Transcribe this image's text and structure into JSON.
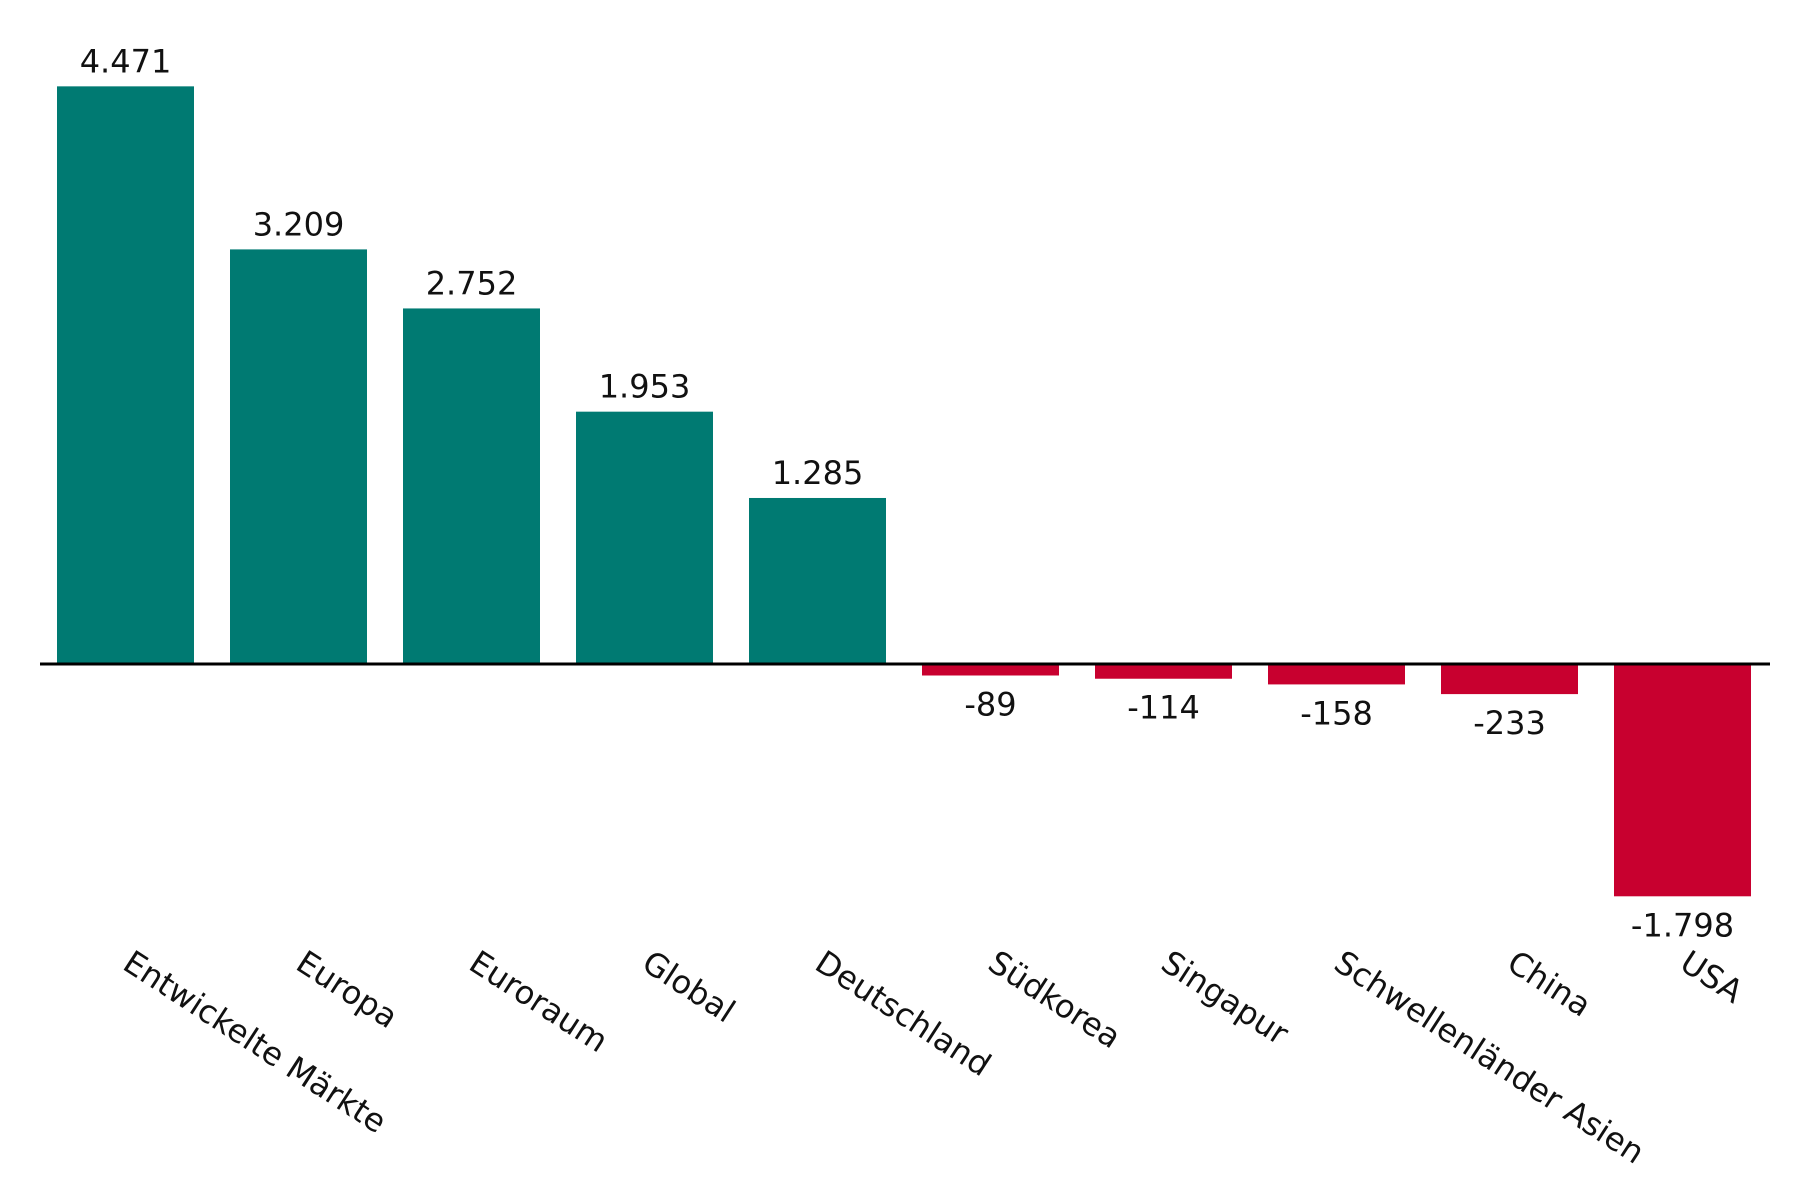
{
  "chart_data": {
    "type": "bar",
    "title": "",
    "xlabel": "",
    "ylabel": "",
    "categories": [
      "Entwickelte Märkte",
      "Europa",
      "Euroraum",
      "Global",
      "Deutschland",
      "Südkorea",
      "Singapur",
      "Schwellenländer Asien",
      "China",
      "USA"
    ],
    "values": [
      4471,
      3209,
      2752,
      1953,
      1285,
      -89,
      -114,
      -158,
      -233,
      -1798
    ],
    "value_labels": [
      "4.471",
      "3.209",
      "2.752",
      "1.953",
      "1.285",
      "-89",
      "-114",
      "-158",
      "-233",
      "-1.798"
    ],
    "colors": {
      "positive": "#007a72",
      "negative": "#c8002f",
      "axis": "#000000"
    },
    "legend": "none",
    "grid": false
  }
}
